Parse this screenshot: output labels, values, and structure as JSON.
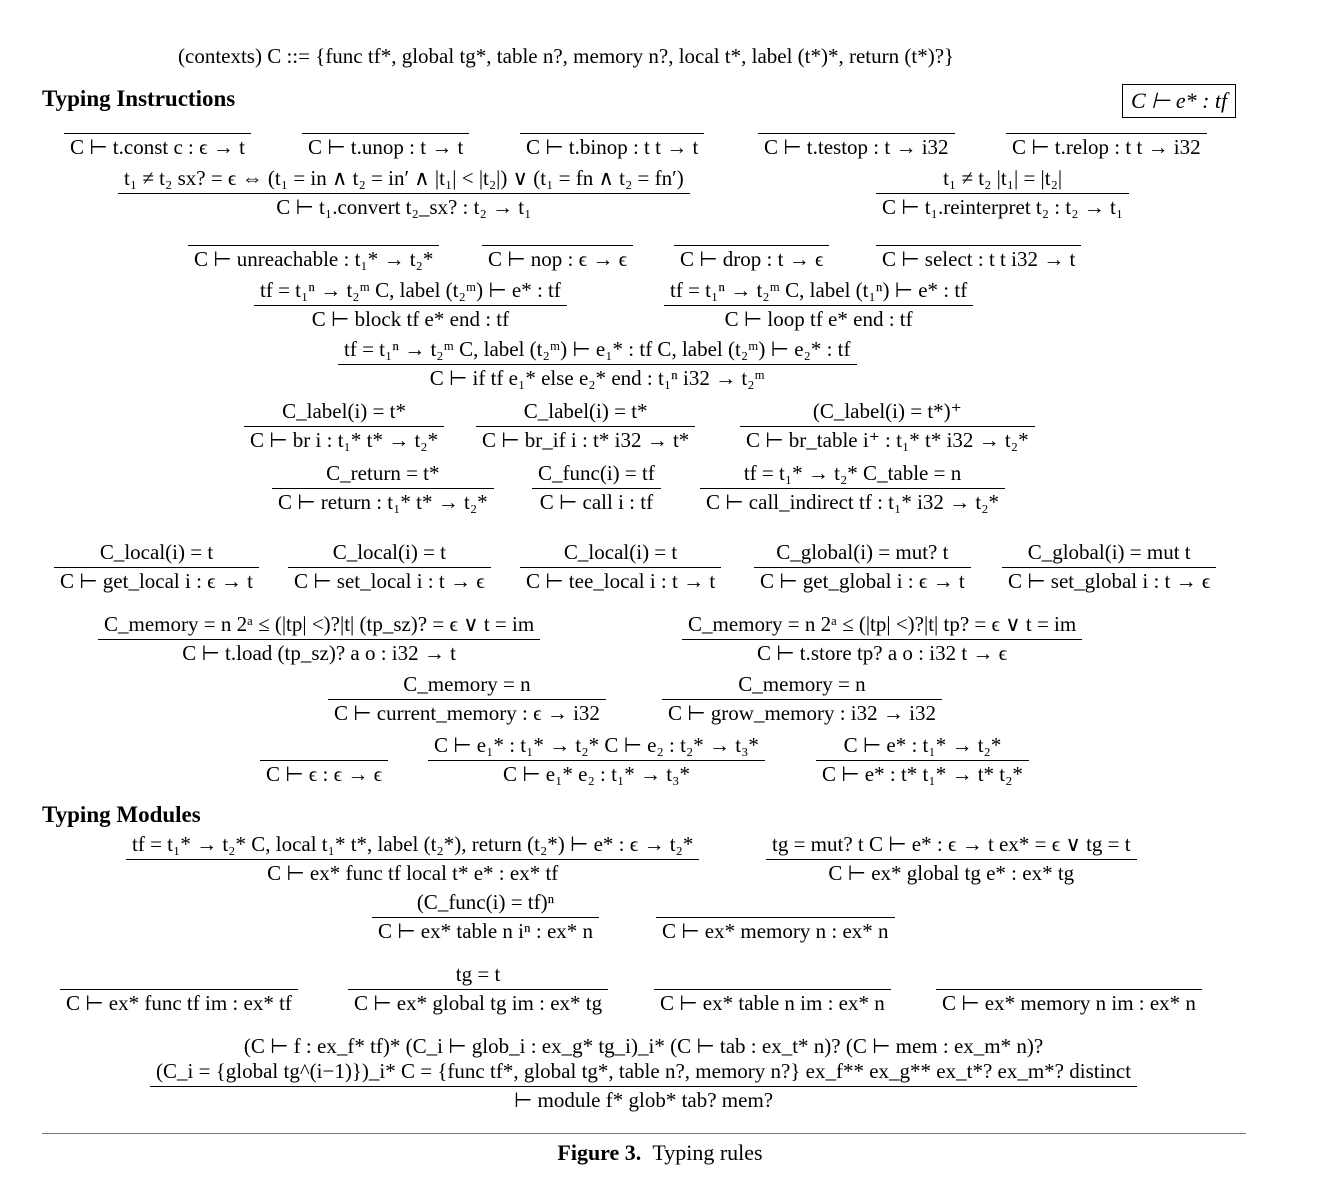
{
  "contexts_line": "(contexts)   C   ::=   {func tf*, global tg*, table n?, memory n?, local t*, label (t*)*, return (t*)?}",
  "sections": {
    "instructions": "Typing Instructions",
    "modules": "Typing Modules"
  },
  "judgement_box": "C ⊢ e* : tf",
  "rules": {
    "const": {
      "premise": "",
      "conclusion": "C ⊢ t.const c : ϵ → t"
    },
    "unop": {
      "premise": "",
      "conclusion": "C ⊢ t.unop : t → t"
    },
    "binop": {
      "premise": "",
      "conclusion": "C ⊢ t.binop : t t → t"
    },
    "testop": {
      "premise": "",
      "conclusion": "C ⊢ t.testop : t → i32"
    },
    "relop": {
      "premise": "",
      "conclusion": "C ⊢ t.relop : t t → i32"
    },
    "convert": {
      "premise": "t₁ ≠ t₂      sx? = ϵ ⇔ (t₁ = in ∧ t₂ = in′ ∧ |t₁| < |t₂|) ∨ (t₁ = fn ∧ t₂ = fn′)",
      "conclusion": "C ⊢ t₁.convert t₂_sx? : t₂ → t₁"
    },
    "reinterpret": {
      "premise": "t₁ ≠ t₂      |t₁| = |t₂|",
      "conclusion": "C ⊢ t₁.reinterpret t₂ : t₂ → t₁"
    },
    "unreachable": {
      "premise": "",
      "conclusion": "C ⊢ unreachable : t₁* → t₂*"
    },
    "nop": {
      "premise": "",
      "conclusion": "C ⊢ nop : ϵ → ϵ"
    },
    "drop": {
      "premise": "",
      "conclusion": "C ⊢ drop : t → ϵ"
    },
    "select": {
      "premise": "",
      "conclusion": "C ⊢ select : t t i32 → t"
    },
    "block": {
      "premise": "tf = t₁ⁿ → t₂ᵐ      C, label (t₂ᵐ) ⊢ e* : tf",
      "conclusion": "C ⊢ block tf e* end : tf"
    },
    "loop": {
      "premise": "tf = t₁ⁿ → t₂ᵐ      C, label (t₁ⁿ) ⊢ e* : tf",
      "conclusion": "C ⊢ loop tf e* end : tf"
    },
    "if": {
      "premise": "tf = t₁ⁿ → t₂ᵐ      C, label (t₂ᵐ) ⊢ e₁* : tf      C, label (t₂ᵐ) ⊢ e₂* : tf",
      "conclusion": "C ⊢ if tf e₁* else e₂* end : t₁ⁿ i32 → t₂ᵐ"
    },
    "br": {
      "premise": "C_label(i) = t*",
      "conclusion": "C ⊢ br i : t₁* t* → t₂*"
    },
    "br_if": {
      "premise": "C_label(i) = t*",
      "conclusion": "C ⊢ br_if i : t* i32 → t*"
    },
    "br_table": {
      "premise": "(C_label(i) = t*)⁺",
      "conclusion": "C ⊢ br_table i⁺ : t₁* t* i32 → t₂*"
    },
    "return": {
      "premise": "C_return = t*",
      "conclusion": "C ⊢ return : t₁* t* → t₂*"
    },
    "call": {
      "premise": "C_func(i) = tf",
      "conclusion": "C ⊢ call i : tf"
    },
    "call_indirect": {
      "premise": "tf = t₁* → t₂*      C_table = n",
      "conclusion": "C ⊢ call_indirect tf : t₁* i32 → t₂*"
    },
    "get_local": {
      "premise": "C_local(i) = t",
      "conclusion": "C ⊢ get_local i : ϵ → t"
    },
    "set_local": {
      "premise": "C_local(i) = t",
      "conclusion": "C ⊢ set_local i : t → ϵ"
    },
    "tee_local": {
      "premise": "C_local(i) = t",
      "conclusion": "C ⊢ tee_local i : t → t"
    },
    "get_global": {
      "premise": "C_global(i) = mut? t",
      "conclusion": "C ⊢ get_global i : ϵ → t"
    },
    "set_global": {
      "premise": "C_global(i) = mut t",
      "conclusion": "C ⊢ set_global i : t → ϵ"
    },
    "load": {
      "premise": "C_memory = n      2ᵃ ≤ (|tp| <)?|t|      (tp_sz)? = ϵ ∨ t = im",
      "conclusion": "C ⊢ t.load (tp_sz)? a o : i32 → t"
    },
    "store": {
      "premise": "C_memory = n      2ᵃ ≤ (|tp| <)?|t|      tp? = ϵ ∨ t = im",
      "conclusion": "C ⊢ t.store tp? a o : i32 t → ϵ"
    },
    "current_memory": {
      "premise": "C_memory = n",
      "conclusion": "C ⊢ current_memory : ϵ → i32"
    },
    "grow_memory": {
      "premise": "C_memory = n",
      "conclusion": "C ⊢ grow_memory : i32 → i32"
    },
    "empty": {
      "premise": "",
      "conclusion": "C ⊢ ϵ : ϵ → ϵ"
    },
    "seq": {
      "premise": "C ⊢ e₁* : t₁* → t₂*      C ⊢ e₂ : t₂* → t₃*",
      "conclusion": "C ⊢ e₁* e₂ : t₁* → t₃*"
    },
    "weaken": {
      "premise": "C ⊢ e* : t₁* → t₂*",
      "conclusion": "C ⊢ e* : t* t₁* → t* t₂*"
    },
    "mod_func": {
      "premise": "tf = t₁* → t₂*      C, local t₁* t*, label (t₂*), return (t₂*) ⊢ e* : ϵ → t₂*",
      "conclusion": "C ⊢ ex* func tf local t* e* : ex* tf"
    },
    "mod_global": {
      "premise": "tg = mut? t      C ⊢ e* : ϵ → t      ex* = ϵ ∨ tg = t",
      "conclusion": "C ⊢ ex* global tg e* : ex* tg"
    },
    "mod_table": {
      "premise": "(C_func(i) = tf)ⁿ",
      "conclusion": "C ⊢ ex* table n iⁿ : ex* n"
    },
    "mod_memory": {
      "premise": "",
      "conclusion": "C ⊢ ex* memory n : ex* n"
    },
    "imp_func": {
      "premise": "",
      "conclusion": "C ⊢ ex* func tf im : ex* tf"
    },
    "imp_global": {
      "premise": "tg = t",
      "conclusion": "C ⊢ ex* global tg im : ex* tg"
    },
    "imp_table": {
      "premise": "",
      "conclusion": "C ⊢ ex* table n im : ex* n"
    },
    "imp_memory": {
      "premise": "",
      "conclusion": "C ⊢ ex* memory n im : ex* n"
    },
    "module": {
      "premise1": "(C ⊢ f : ex_f* tf)*      (C_i ⊢ glob_i : ex_g* tg_i)_i*      (C ⊢ tab : ex_t* n)?      (C ⊢ mem : ex_m* n)?",
      "premise2": "(C_i = {global tg^(i−1)})_i*      C = {func tf*, global tg*, table n?, memory n?}      ex_f** ex_g** ex_t*? ex_m*? distinct",
      "conclusion": "⊢ module f* glob* tab? mem?"
    }
  },
  "caption": {
    "label": "Figure 3.",
    "text": "Typing rules"
  }
}
